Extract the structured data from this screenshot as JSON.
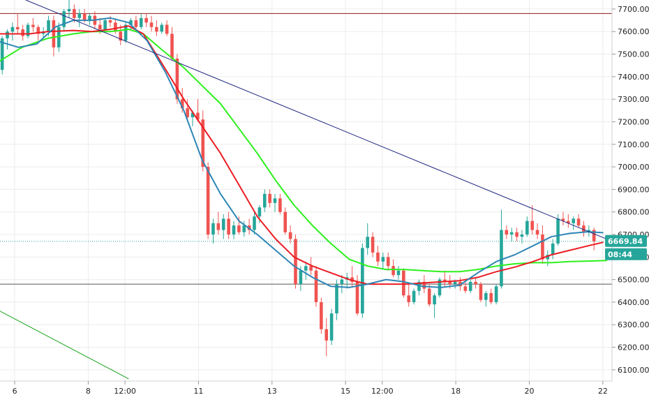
{
  "chart_data": {
    "type": "candlestick",
    "y_ticks": [
      6100,
      6200,
      6300,
      6400,
      6500,
      6600,
      6700,
      6800,
      6900,
      7000,
      7100,
      7200,
      7300,
      7400,
      7500,
      7600,
      7700
    ],
    "ylim": [
      6050,
      7740
    ],
    "x_ticks": [
      {
        "label": "6",
        "t": 1
      },
      {
        "label": "8",
        "t": 21
      },
      {
        "label": "12:00",
        "t": 31
      },
      {
        "label": "11",
        "t": 51
      },
      {
        "label": "13",
        "t": 71
      },
      {
        "label": "15",
        "t": 91
      },
      {
        "label": "12:00",
        "t": 101
      },
      {
        "label": "18",
        "t": 121
      },
      {
        "label": "20",
        "t": 141
      },
      {
        "label": "22",
        "t": 161
      }
    ],
    "xlim": [
      -3,
      163.5
    ],
    "candles": [
      [
        7430,
        7580,
        7410,
        7570
      ],
      [
        7570,
        7610,
        7520,
        7600
      ],
      [
        7600,
        7640,
        7560,
        7620
      ],
      [
        7620,
        7680,
        7590,
        7610
      ],
      [
        7610,
        7630,
        7560,
        7580
      ],
      [
        7580,
        7640,
        7570,
        7630
      ],
      [
        7630,
        7660,
        7600,
        7620
      ],
      [
        7620,
        7630,
        7560,
        7590
      ],
      [
        7590,
        7620,
        7570,
        7600
      ],
      [
        7600,
        7670,
        7580,
        7650
      ],
      [
        7650,
        7670,
        7490,
        7530
      ],
      [
        7530,
        7640,
        7510,
        7620
      ],
      [
        7620,
        7700,
        7600,
        7690
      ],
      [
        7690,
        7740,
        7660,
        7700
      ],
      [
        7700,
        7720,
        7640,
        7660
      ],
      [
        7660,
        7700,
        7620,
        7680
      ],
      [
        7680,
        7700,
        7640,
        7650
      ],
      [
        7650,
        7680,
        7630,
        7670
      ],
      [
        7670,
        7690,
        7610,
        7630
      ],
      [
        7630,
        7660,
        7590,
        7610
      ],
      [
        7610,
        7660,
        7600,
        7650
      ],
      [
        7650,
        7670,
        7620,
        7640
      ],
      [
        7640,
        7660,
        7590,
        7600
      ],
      [
        7600,
        7630,
        7540,
        7560
      ],
      [
        7560,
        7640,
        7550,
        7630
      ],
      [
        7630,
        7660,
        7610,
        7650
      ],
      [
        7650,
        7670,
        7600,
        7620
      ],
      [
        7620,
        7680,
        7610,
        7660
      ],
      [
        7660,
        7680,
        7620,
        7640
      ],
      [
        7640,
        7670,
        7600,
        7620
      ],
      [
        7620,
        7650,
        7580,
        7600
      ],
      [
        7600,
        7640,
        7590,
        7630
      ],
      [
        7630,
        7650,
        7580,
        7590
      ],
      [
        7590,
        7620,
        7470,
        7480
      ],
      [
        7480,
        7500,
        7280,
        7300
      ],
      [
        7300,
        7350,
        7240,
        7260
      ],
      [
        7260,
        7300,
        7200,
        7220
      ],
      [
        7220,
        7250,
        7180,
        7240
      ],
      [
        7240,
        7300,
        7200,
        7210
      ],
      [
        7210,
        7250,
        6980,
        7000
      ],
      [
        7000,
        7020,
        6680,
        6700
      ],
      [
        6700,
        6770,
        6660,
        6750
      ],
      [
        6750,
        6800,
        6700,
        6720
      ],
      [
        6720,
        6790,
        6680,
        6770
      ],
      [
        6770,
        6800,
        6680,
        6700
      ],
      [
        6700,
        6760,
        6680,
        6740
      ],
      [
        6740,
        6780,
        6700,
        6710
      ],
      [
        6710,
        6760,
        6690,
        6740
      ],
      [
        6740,
        6770,
        6700,
        6720
      ],
      [
        6720,
        6800,
        6700,
        6780
      ],
      [
        6780,
        6830,
        6750,
        6820
      ],
      [
        6820,
        6900,
        6800,
        6880
      ],
      [
        6880,
        6900,
        6820,
        6840
      ],
      [
        6840,
        6880,
        6800,
        6860
      ],
      [
        6860,
        6880,
        6790,
        6800
      ],
      [
        6800,
        6820,
        6700,
        6710
      ],
      [
        6710,
        6740,
        6660,
        6680
      ],
      [
        6680,
        6700,
        6460,
        6480
      ],
      [
        6480,
        6560,
        6450,
        6540
      ],
      [
        6540,
        6580,
        6500,
        6560
      ],
      [
        6560,
        6600,
        6520,
        6540
      ],
      [
        6540,
        6560,
        6380,
        6400
      ],
      [
        6400,
        6420,
        6260,
        6280
      ],
      [
        6280,
        6330,
        6160,
        6230
      ],
      [
        6230,
        6370,
        6210,
        6350
      ],
      [
        6350,
        6500,
        6320,
        6480
      ],
      [
        6480,
        6520,
        6440,
        6500
      ],
      [
        6500,
        6530,
        6460,
        6510
      ],
      [
        6510,
        6560,
        6470,
        6490
      ],
      [
        6490,
        6520,
        6340,
        6350
      ],
      [
        6350,
        6660,
        6330,
        6640
      ],
      [
        6640,
        6750,
        6610,
        6690
      ],
      [
        6690,
        6710,
        6600,
        6620
      ],
      [
        6620,
        6650,
        6560,
        6580
      ],
      [
        6580,
        6620,
        6550,
        6600
      ],
      [
        6600,
        6620,
        6540,
        6560
      ],
      [
        6560,
        6590,
        6510,
        6520
      ],
      [
        6520,
        6560,
        6500,
        6540
      ],
      [
        6540,
        6550,
        6420,
        6430
      ],
      [
        6430,
        6480,
        6380,
        6400
      ],
      [
        6400,
        6460,
        6390,
        6450
      ],
      [
        6450,
        6500,
        6430,
        6490
      ],
      [
        6490,
        6520,
        6440,
        6460
      ],
      [
        6460,
        6480,
        6380,
        6390
      ],
      [
        6390,
        6440,
        6330,
        6430
      ],
      [
        6430,
        6510,
        6420,
        6500
      ],
      [
        6500,
        6540,
        6470,
        6490
      ],
      [
        6490,
        6520,
        6460,
        6480
      ],
      [
        6480,
        6500,
        6460,
        6490
      ],
      [
        6490,
        6510,
        6450,
        6470
      ],
      [
        6470,
        6490,
        6440,
        6450
      ],
      [
        6450,
        6500,
        6440,
        6490
      ],
      [
        6490,
        6510,
        6460,
        6480
      ],
      [
        6480,
        6490,
        6400,
        6410
      ],
      [
        6410,
        6450,
        6380,
        6440
      ],
      [
        6440,
        6460,
        6390,
        6400
      ],
      [
        6400,
        6480,
        6390,
        6470
      ],
      [
        6470,
        6810,
        6460,
        6720
      ],
      [
        6720,
        6740,
        6680,
        6700
      ],
      [
        6700,
        6730,
        6670,
        6710
      ],
      [
        6710,
        6730,
        6670,
        6690
      ],
      [
        6690,
        6720,
        6660,
        6700
      ],
      [
        6700,
        6780,
        6690,
        6760
      ],
      [
        6760,
        6830,
        6700,
        6720
      ],
      [
        6720,
        6750,
        6680,
        6700
      ],
      [
        6700,
        6740,
        6570,
        6590
      ],
      [
        6590,
        6630,
        6560,
        6610
      ],
      [
        6610,
        6680,
        6590,
        6660
      ],
      [
        6660,
        6790,
        6650,
        6770
      ],
      [
        6770,
        6800,
        6740,
        6760
      ],
      [
        6760,
        6790,
        6730,
        6750
      ],
      [
        6750,
        6780,
        6720,
        6770
      ],
      [
        6770,
        6790,
        6730,
        6740
      ],
      [
        6740,
        6760,
        6690,
        6710
      ],
      [
        6710,
        6740,
        6690,
        6720
      ],
      [
        6720,
        6730,
        6630,
        6670
      ]
    ],
    "candle_t_step": 1.4,
    "candle_t_start": -2.4,
    "sma_blue": [
      [
        -3,
        7555
      ],
      [
        2,
        7530
      ],
      [
        7,
        7545
      ],
      [
        12,
        7620
      ],
      [
        17,
        7650
      ],
      [
        22,
        7650
      ],
      [
        27,
        7660
      ],
      [
        32,
        7640
      ],
      [
        37,
        7560
      ],
      [
        42,
        7420
      ],
      [
        47,
        7250
      ],
      [
        52,
        7030
      ],
      [
        57,
        6880
      ],
      [
        62,
        6760
      ],
      [
        67,
        6700
      ],
      [
        72,
        6630
      ],
      [
        77,
        6560
      ],
      [
        82,
        6510
      ],
      [
        87,
        6470
      ],
      [
        92,
        6465
      ],
      [
        97,
        6480
      ],
      [
        102,
        6500
      ],
      [
        107,
        6490
      ],
      [
        112,
        6470
      ],
      [
        117,
        6465
      ],
      [
        122,
        6475
      ],
      [
        127,
        6530
      ],
      [
        132,
        6580
      ],
      [
        137,
        6610
      ],
      [
        142,
        6650
      ],
      [
        147,
        6690
      ],
      [
        152,
        6705
      ],
      [
        157,
        6712
      ],
      [
        161,
        6708
      ]
    ],
    "sma_red": [
      [
        -3,
        7590
      ],
      [
        5,
        7590
      ],
      [
        10,
        7600
      ],
      [
        17,
        7605
      ],
      [
        22,
        7600
      ],
      [
        27,
        7610
      ],
      [
        32,
        7625
      ],
      [
        36,
        7590
      ],
      [
        41,
        7460
      ],
      [
        47,
        7300
      ],
      [
        52,
        7180
      ],
      [
        57,
        7060
      ],
      [
        62,
        6920
      ],
      [
        67,
        6780
      ],
      [
        72,
        6680
      ],
      [
        77,
        6600
      ],
      [
        82,
        6560
      ],
      [
        87,
        6530
      ],
      [
        92,
        6500
      ],
      [
        97,
        6480
      ],
      [
        102,
        6480
      ],
      [
        107,
        6480
      ],
      [
        112,
        6485
      ],
      [
        117,
        6490
      ],
      [
        122,
        6495
      ],
      [
        127,
        6510
      ],
      [
        132,
        6535
      ],
      [
        137,
        6555
      ],
      [
        142,
        6580
      ],
      [
        147,
        6610
      ],
      [
        152,
        6630
      ],
      [
        157,
        6650
      ],
      [
        161,
        6665
      ]
    ],
    "sma_green": [
      [
        -3,
        7470
      ],
      [
        3,
        7530
      ],
      [
        10,
        7570
      ],
      [
        17,
        7590
      ],
      [
        22,
        7600
      ],
      [
        27,
        7600
      ],
      [
        32,
        7610
      ],
      [
        36,
        7590
      ],
      [
        41,
        7520
      ],
      [
        47,
        7440
      ],
      [
        52,
        7360
      ],
      [
        57,
        7280
      ],
      [
        62,
        7170
      ],
      [
        67,
        7060
      ],
      [
        72,
        6940
      ],
      [
        77,
        6830
      ],
      [
        82,
        6740
      ],
      [
        87,
        6660
      ],
      [
        92,
        6590
      ],
      [
        97,
        6560
      ],
      [
        102,
        6545
      ],
      [
        107,
        6545
      ],
      [
        112,
        6540
      ],
      [
        117,
        6535
      ],
      [
        122,
        6535
      ],
      [
        127,
        6545
      ],
      [
        132,
        6560
      ],
      [
        137,
        6570
      ],
      [
        142,
        6575
      ],
      [
        147,
        6575
      ],
      [
        152,
        6580
      ],
      [
        157,
        6582
      ],
      [
        162,
        6585
      ]
    ],
    "trendline_down": [
      [
        4,
        7740
      ],
      [
        163.5,
        6670
      ]
    ],
    "trendline_green": [
      [
        -3,
        6360
      ],
      [
        32,
        6060
      ]
    ],
    "hline_red": 7680,
    "hline_gray": 6480,
    "current_price_line": 6670,
    "current_price_label": "6669.84",
    "countdown_label": "08:44",
    "colors": {
      "up": "#26a69a",
      "down": "#ef5350",
      "sma_blue": "#2e86b5",
      "sma_red": "#ec1c24",
      "sma_green": "#2cf01c",
      "trend_navy": "#1a237e",
      "trend_green": "#1aa31a",
      "hline_red": "#8b1a1a",
      "hline_gray": "#555555",
      "badge": "#26a69a"
    }
  }
}
